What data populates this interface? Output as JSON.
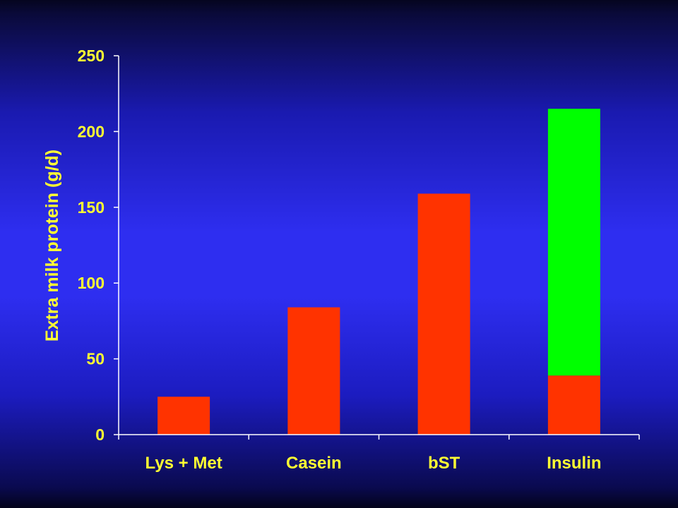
{
  "colors": {
    "axis": "#ffffff",
    "text": "#ffff33",
    "base_series": "#ff3300",
    "additional_series": "#00ff00"
  },
  "chart_data": {
    "type": "bar",
    "stacked": true,
    "categories": [
      "Lys + Met",
      "Casein",
      "bST",
      "Insulin"
    ],
    "series": [
      {
        "values": [
          25,
          84,
          159,
          39
        ],
        "color": "#ff3300"
      },
      {
        "values": [
          0,
          0,
          0,
          176
        ],
        "color": "#00ff00"
      }
    ],
    "title": "",
    "xlabel": "",
    "ylabel": "Extra milk protein (g/d)",
    "ylim": [
      0,
      250
    ],
    "yticks": [
      0,
      50,
      100,
      150,
      200,
      250
    ],
    "grid": false,
    "legend": "none"
  }
}
